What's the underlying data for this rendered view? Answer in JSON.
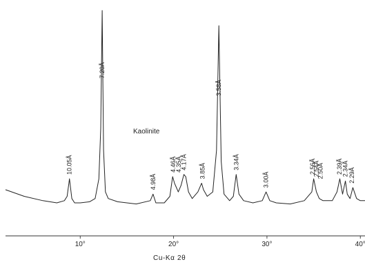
{
  "chart_data": {
    "type": "line",
    "title": "",
    "annotation": "Kaolinite",
    "xlabel": "Cu-Kα 2θ",
    "ylabel": "",
    "xlim": [
      2,
      40.5
    ],
    "ylim": [
      0,
      100
    ],
    "grid": false,
    "x_ticks": [
      {
        "value": 10,
        "label": "10°"
      },
      {
        "value": 20,
        "label": "20°"
      },
      {
        "value": 30,
        "label": "30°"
      },
      {
        "value": 40,
        "label": "40°"
      }
    ],
    "series": [
      {
        "color": "#222222",
        "x": [
          2.0,
          4.0,
          6.0,
          7.5,
          8.3,
          8.6,
          8.85,
          9.1,
          9.4,
          10.0,
          11.0,
          11.6,
          12.0,
          12.2,
          12.35,
          12.5,
          12.7,
          13.0,
          14.0,
          16.0,
          17.5,
          17.8,
          18.1,
          19.0,
          19.6,
          19.9,
          20.1,
          20.5,
          20.8,
          21.1,
          21.3,
          21.6,
          22.0,
          22.6,
          23.0,
          23.2,
          23.6,
          24.2,
          24.6,
          24.85,
          25.1,
          25.4,
          26.0,
          26.4,
          26.7,
          27.0,
          27.5,
          28.5,
          29.5,
          29.9,
          30.3,
          31.0,
          32.5,
          34.0,
          34.8,
          35.0,
          35.3,
          35.6,
          36.0,
          37.0,
          37.5,
          37.8,
          38.1,
          38.4,
          38.6,
          38.9,
          39.2,
          39.6,
          40.0,
          40.5
        ],
        "y": [
          17,
          14,
          12,
          11,
          12,
          14,
          22,
          13,
          11,
          11,
          11.5,
          13,
          22,
          45,
          99,
          35,
          16,
          13,
          11.5,
          10.5,
          12,
          15,
          11,
          11,
          14,
          23,
          20,
          16,
          19,
          24,
          23,
          16,
          13,
          16,
          20,
          17,
          14,
          16,
          35,
          92,
          30,
          15,
          12,
          14,
          24,
          15,
          12,
          11,
          12,
          16,
          12,
          11,
          10.5,
          12,
          16,
          22,
          16,
          13,
          12,
          12,
          16,
          22,
          15,
          21,
          15,
          13,
          18,
          13,
          12,
          12
        ]
      }
    ],
    "peak_labels": [
      {
        "x": 8.85,
        "y": 22,
        "label": "10.05Å"
      },
      {
        "x": 12.35,
        "y": 66,
        "label": "7.20Å"
      },
      {
        "x": 17.8,
        "y": 15,
        "label": "4.98Å"
      },
      {
        "x": 19.95,
        "y": 23,
        "label": "4.46Å"
      },
      {
        "x": 20.55,
        "y": 23,
        "label": "4.35Å"
      },
      {
        "x": 21.1,
        "y": 24,
        "label": "4.17Å"
      },
      {
        "x": 23.1,
        "y": 20,
        "label": "3.85Å"
      },
      {
        "x": 24.85,
        "y": 58,
        "label": "3.58Å"
      },
      {
        "x": 26.7,
        "y": 24,
        "label": "3.34Å"
      },
      {
        "x": 29.9,
        "y": 16,
        "label": "3.00Å"
      },
      {
        "x": 34.9,
        "y": 22,
        "label": "2.56Å"
      },
      {
        "x": 35.3,
        "y": 21,
        "label": "2.54Å"
      },
      {
        "x": 35.75,
        "y": 20,
        "label": "2.50Å"
      },
      {
        "x": 37.75,
        "y": 22,
        "label": "2.39Å"
      },
      {
        "x": 38.4,
        "y": 21,
        "label": "2.34Å"
      },
      {
        "x": 39.1,
        "y": 18,
        "label": "2.29Å"
      }
    ]
  }
}
